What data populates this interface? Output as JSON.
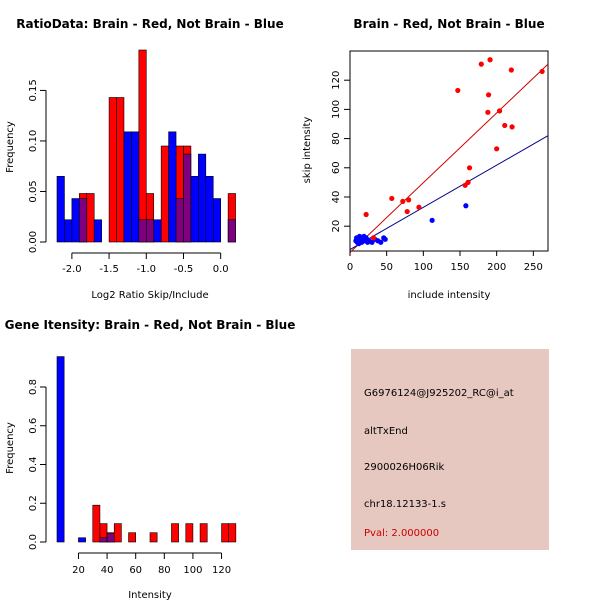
{
  "colors": {
    "red": "#ff0000",
    "blue": "#0000ff",
    "overlap": "#7f007f",
    "panel_bg": "#e6c8c0",
    "pval_red": "#cc0000",
    "line_red": "#cc0000",
    "line_blue": "#00008b"
  },
  "chart_data": [
    {
      "id": "ratio-hist",
      "type": "bar",
      "title": "RatioData: Brain - Red, Not Brain - Blue",
      "xlabel": "Log2 Ratio Skip/Include",
      "ylabel": "Frequency",
      "xlim": [
        -2.2,
        0.3
      ],
      "ylim": [
        0,
        0.19
      ],
      "xticks": [
        -2.0,
        -1.5,
        -1.0,
        -0.5,
        0.0
      ],
      "xtick_labels": [
        "-2.0",
        "-1.5",
        "-1.0",
        "-0.5",
        "0.0"
      ],
      "yticks": [
        0.0,
        0.05,
        0.1,
        0.15
      ],
      "ytick_labels": [
        "0.00",
        "0.05",
        "0.10",
        "0.15"
      ],
      "red_bins": [
        {
          "x0": -1.9,
          "x1": -1.8,
          "v": 0.048
        },
        {
          "x0": -1.8,
          "x1": -1.7,
          "v": 0.048
        },
        {
          "x0": -1.5,
          "x1": -1.4,
          "v": 0.143
        },
        {
          "x0": -1.4,
          "x1": -1.3,
          "v": 0.143
        },
        {
          "x0": -1.1,
          "x1": -1.0,
          "v": 0.19
        },
        {
          "x0": -1.0,
          "x1": -0.9,
          "v": 0.048
        },
        {
          "x0": -0.8,
          "x1": -0.7,
          "v": 0.095
        },
        {
          "x0": -0.6,
          "x1": -0.5,
          "v": 0.095
        },
        {
          "x0": -0.5,
          "x1": -0.4,
          "v": 0.095
        },
        {
          "x0": 0.1,
          "x1": 0.2,
          "v": 0.048
        }
      ],
      "blue_bins": [
        {
          "x0": -2.2,
          "x1": -2.1,
          "v": 0.065
        },
        {
          "x0": -2.1,
          "x1": -2.0,
          "v": 0.022
        },
        {
          "x0": -2.0,
          "x1": -1.9,
          "v": 0.043
        },
        {
          "x0": -1.9,
          "x1": -1.8,
          "v": 0.043
        },
        {
          "x0": -1.7,
          "x1": -1.6,
          "v": 0.022
        },
        {
          "x0": -1.3,
          "x1": -1.2,
          "v": 0.109
        },
        {
          "x0": -1.2,
          "x1": -1.1,
          "v": 0.109
        },
        {
          "x0": -1.1,
          "x1": -1.0,
          "v": 0.022
        },
        {
          "x0": -1.0,
          "x1": -0.9,
          "v": 0.022
        },
        {
          "x0": -0.9,
          "x1": -0.8,
          "v": 0.022
        },
        {
          "x0": -0.7,
          "x1": -0.6,
          "v": 0.109
        },
        {
          "x0": -0.6,
          "x1": -0.5,
          "v": 0.043
        },
        {
          "x0": -0.5,
          "x1": -0.4,
          "v": 0.087
        },
        {
          "x0": -0.4,
          "x1": -0.3,
          "v": 0.065
        },
        {
          "x0": -0.3,
          "x1": -0.2,
          "v": 0.087
        },
        {
          "x0": -0.2,
          "x1": -0.1,
          "v": 0.065
        },
        {
          "x0": -0.1,
          "x1": 0.0,
          "v": 0.043
        },
        {
          "x0": 0.1,
          "x1": 0.2,
          "v": 0.022
        }
      ]
    },
    {
      "id": "scatter",
      "type": "scatter",
      "title": "Brain - Red, Not Brain - Blue",
      "xlabel": "include intensity",
      "ylabel": "skip intensity",
      "xlim": [
        0,
        270
      ],
      "ylim": [
        3,
        140
      ],
      "xticks": [
        0,
        50,
        100,
        150,
        200,
        250
      ],
      "yticks": [
        20,
        40,
        60,
        80,
        100,
        120
      ],
      "red_points": [
        [
          22,
          28
        ],
        [
          32,
          12
        ],
        [
          57,
          39
        ],
        [
          72,
          37
        ],
        [
          78,
          30
        ],
        [
          80,
          38
        ],
        [
          94,
          33
        ],
        [
          147,
          113
        ],
        [
          157,
          48
        ],
        [
          161,
          50
        ],
        [
          163,
          60
        ],
        [
          179,
          131
        ],
        [
          188,
          98
        ],
        [
          189,
          110
        ],
        [
          191,
          134
        ],
        [
          200,
          73
        ],
        [
          204,
          99
        ],
        [
          211,
          89
        ],
        [
          220,
          127
        ],
        [
          221,
          88
        ],
        [
          262,
          126
        ]
      ],
      "blue_points": [
        [
          8,
          10
        ],
        [
          9,
          12
        ],
        [
          10,
          9
        ],
        [
          11,
          11
        ],
        [
          12,
          8
        ],
        [
          13,
          13
        ],
        [
          14,
          10
        ],
        [
          15,
          12
        ],
        [
          16,
          9
        ],
        [
          18,
          11
        ],
        [
          19,
          13
        ],
        [
          20,
          10
        ],
        [
          22,
          12
        ],
        [
          24,
          9
        ],
        [
          26,
          10
        ],
        [
          30,
          9
        ],
        [
          34,
          11
        ],
        [
          38,
          10
        ],
        [
          42,
          9
        ],
        [
          46,
          12
        ],
        [
          48,
          11
        ],
        [
          112,
          24
        ],
        [
          158,
          34
        ]
      ],
      "red_line": [
        [
          0,
          2
        ],
        [
          270,
          131
        ]
      ],
      "blue_line": [
        [
          0,
          4
        ],
        [
          270,
          82
        ]
      ]
    },
    {
      "id": "intensity-hist",
      "type": "bar",
      "title": "Gene Itensity: Brain - Red, Not Brain - Blue",
      "xlabel": "Intensity",
      "ylabel": "Frequency",
      "xlim": [
        5,
        135
      ],
      "ylim": [
        0,
        0.96
      ],
      "xticks": [
        20,
        40,
        60,
        80,
        100,
        120
      ],
      "yticks": [
        0.0,
        0.2,
        0.4,
        0.6,
        0.8
      ],
      "ytick_labels": [
        "0.0",
        "0.2",
        "0.4",
        "0.6",
        "0.8"
      ],
      "red_bins": [
        {
          "x0": 30,
          "x1": 35,
          "v": 0.19
        },
        {
          "x0": 35,
          "x1": 40,
          "v": 0.095
        },
        {
          "x0": 40,
          "x1": 45,
          "v": 0.048
        },
        {
          "x0": 45,
          "x1": 50,
          "v": 0.095
        },
        {
          "x0": 55,
          "x1": 60,
          "v": 0.048
        },
        {
          "x0": 70,
          "x1": 75,
          "v": 0.048
        },
        {
          "x0": 85,
          "x1": 90,
          "v": 0.095
        },
        {
          "x0": 95,
          "x1": 100,
          "v": 0.095
        },
        {
          "x0": 105,
          "x1": 110,
          "v": 0.095
        },
        {
          "x0": 120,
          "x1": 125,
          "v": 0.095
        },
        {
          "x0": 125,
          "x1": 130,
          "v": 0.095
        }
      ],
      "blue_bins": [
        {
          "x0": 5,
          "x1": 10,
          "v": 0.957
        },
        {
          "x0": 20,
          "x1": 25,
          "v": 0.022
        },
        {
          "x0": 35,
          "x1": 40,
          "v": 0.022
        },
        {
          "x0": 40,
          "x1": 45,
          "v": 0.043
        }
      ]
    }
  ],
  "info_panel": {
    "probe_id": "G6976124@J925202_RC@i_at",
    "event_type": "altTxEnd",
    "gene": "2900026H06Rik",
    "location": "chr18.12133-1.s",
    "pval": "Pval: 2.000000"
  }
}
